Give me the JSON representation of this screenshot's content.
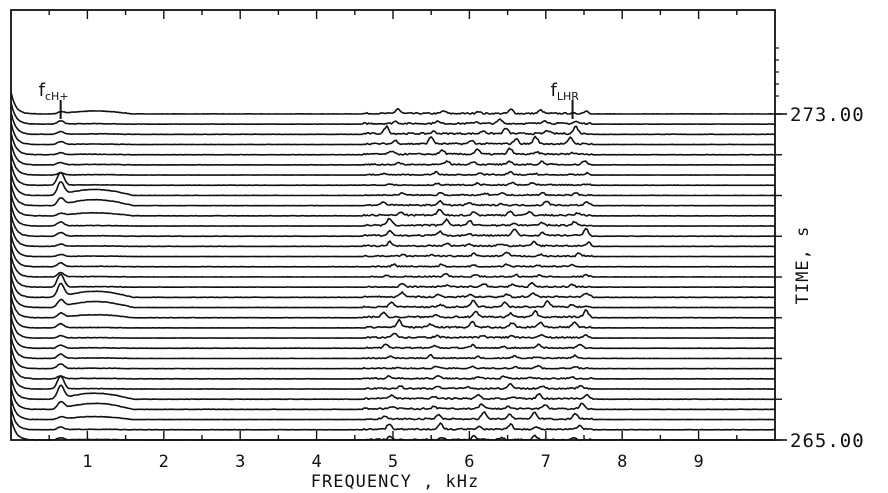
{
  "chart_data": {
    "type": "line",
    "title": "",
    "xlabel": "FREQUENCY , kHz",
    "ylabel": "TIME, s",
    "xlim": [
      0,
      10
    ],
    "ylim": [
      265.0,
      273.0
    ],
    "x_ticks": [
      1,
      2,
      3,
      4,
      5,
      6,
      7,
      8,
      9
    ],
    "x_tick_labels": [
      "1",
      "2",
      "3",
      "4",
      "5",
      "6",
      "7",
      "8",
      "9"
    ],
    "y_tick_labels": [
      "273.00",
      "265.00"
    ],
    "y_tick_values": [
      273.0,
      265.0
    ],
    "trace_count": 33,
    "grid": false,
    "annotations": [
      {
        "id": "fcH",
        "main": "f",
        "sub": "cH+",
        "x_khz": 0.65
      },
      {
        "id": "fLHR",
        "main": "f",
        "sub": "LHR",
        "x_khz": 7.35
      }
    ],
    "spectral_features": [
      {
        "name": "cyclotron-peak",
        "x_khz": 0.65
      },
      {
        "name": "broadband-bump",
        "x_range_khz": [
          0.6,
          1.6
        ]
      },
      {
        "name": "vlf-band",
        "x_range_khz": [
          4.6,
          7.6
        ]
      },
      {
        "name": "line-5.0",
        "x_khz": 5.0
      },
      {
        "name": "line-5.6",
        "x_khz": 5.6
      },
      {
        "name": "line-6.1",
        "x_khz": 6.1
      },
      {
        "name": "line-6.5",
        "x_khz": 6.5
      },
      {
        "name": "line-6.9",
        "x_khz": 6.9
      },
      {
        "name": "line-7.45",
        "x_khz": 7.45
      }
    ]
  }
}
